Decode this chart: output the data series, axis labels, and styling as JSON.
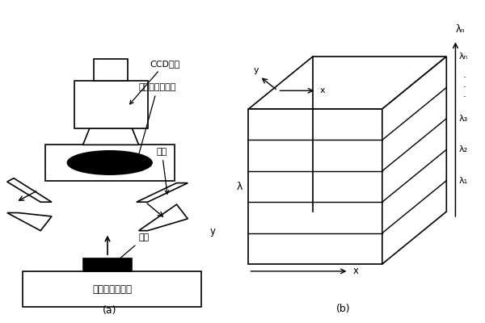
{
  "title_a": "(a)",
  "title_b": "(b)",
  "label_ccd": "CCD相机",
  "label_filter": "滤光片或滤波器",
  "label_light": "光源",
  "label_sample": "样品",
  "label_stage": "不可移动载物台",
  "label_lambda_n": "λₙ",
  "label_lambda_3": "λ₃",
  "label_lambda_2": "λ₂",
  "label_lambda_1": "λ₁",
  "label_x": "x",
  "label_y": "y",
  "label_lambda": "λ",
  "dots": "·\n·\n·"
}
